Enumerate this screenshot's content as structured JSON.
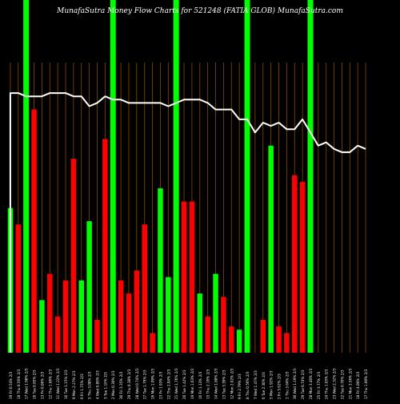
{
  "title": "MunafaSutra  Money Flow  Charts for 521248               (FATIA GLOB) MunafaSutra.com",
  "colors": {
    "background": "#000000",
    "up": "#00ff00",
    "down": "#ff0000",
    "grid": "#8a4a00",
    "highlight": "#00ff00",
    "line": "#ffffff",
    "text": "#ffffff"
  },
  "chart_data": {
    "type": "bar",
    "title": "MunafaSutra  Money Flow  Charts for 521248               (FATIA GLOB) MunafaSutra.com",
    "xlabel": "",
    "ylabel": "",
    "ylim": [
      0,
      100
    ],
    "grid": "vertical",
    "categories": [
      "19 Fri 0.54% 2/3",
      "18 Thu 0.56% 2/3",
      "17 Wed 1.98% 2/3",
      "16 Tue 0.85% 2/3",
      "13 Fri 0.06% 2/3",
      "12 Thu 1.06% 2/3",
      "11 Wed 1.22% 2/3",
      "10 Tue 1.15% 2/3",
      "9 Mon 2.27% 2/3",
      "6 Fri 1.75% 2/3",
      "5 Thu 3.08% 2/3",
      "4 Wed 0.89% 2/3",
      "3 Tue 1.16% 2/3",
      "2 Mon 0.30% 2/3",
      "30 Fri 3.35% 2/3",
      "29 Thu 0.38% 2/3",
      "28 Wed 0.74% 2/3",
      "27 Tue 1.79% 2/3",
      "26 Mon 1.09% 2/3",
      "23 Fri 1.93% 2/3",
      "22 Thu 2.04% 2/3",
      "21 Wed 1.76% 2/3",
      "20 Tue 1.42% 2/3",
      "19 Mon 1.63% 2/3",
      "16 Fri 1.13% 2/3",
      "15 Thu 2.16% 2/3",
      "14 Wed 1.88% 2/3",
      "13 Tue 3.39% 2/3",
      "12 Mon 2.02% 2/3",
      "9 Fri 2.79% 2/3",
      "8 Thu 0.56% 2/3",
      "7 Wed 1.47% 2/3",
      "6 Tue 2.30% 2/3",
      "5 Mon 1.92% 2/3",
      "2 Fri 3.62% 2/3",
      "1 Thu 3.64% 2/3",
      "30 Wed 1.19% 2/3",
      "29 Tue 0.74% 2/3",
      "28 Mon 3.40% 2/3",
      "25 Fri 3.77% 2/3",
      "24 Thu 1.05% 2/3",
      "23 Wed 2.32% 2/3",
      "22 Tue 0.70% 2/3",
      "21 Mon 3.56% 2/3",
      "18 Fri 4.00% 2/3",
      "17 Thu 1.00% 2/3"
    ],
    "series": [
      {
        "values": [
          44,
          39,
          0,
          74,
          16,
          24,
          11,
          22,
          59,
          22,
          40,
          10,
          65,
          30,
          22,
          18,
          25,
          39,
          6,
          50,
          23,
          0,
          46,
          46,
          18,
          11,
          24,
          17,
          8,
          7,
          48,
          0,
          10,
          63,
          8,
          6,
          54,
          52,
          0,
          0,
          0,
          0,
          0,
          0,
          0,
          0
        ],
        "directions": [
          "up",
          "down",
          "up",
          "down",
          "up",
          "down",
          "down",
          "down",
          "down",
          "up",
          "up",
          "down",
          "down",
          "up",
          "down",
          "down",
          "down",
          "down",
          "down",
          "up",
          "up",
          "up",
          "down",
          "down",
          "up",
          "down",
          "up",
          "down",
          "down",
          "up",
          "up",
          "up",
          "down",
          "up",
          "down",
          "down",
          "down",
          "down",
          "down",
          "down",
          "down",
          "down",
          "down",
          "down",
          "down",
          "down"
        ]
      }
    ],
    "line_values": [
      79,
      79,
      78,
      78,
      78,
      79,
      79,
      79,
      78,
      78,
      75,
      76,
      78,
      77,
      77,
      76,
      76,
      76,
      76,
      76,
      75,
      76,
      77,
      77,
      77,
      76,
      74,
      74,
      74,
      71,
      71,
      67,
      70,
      69,
      70,
      68,
      68,
      71,
      67,
      63,
      64,
      62,
      61,
      61,
      63,
      62
    ],
    "highlight_categories": [
      "17 Wed 1.98% 2/3",
      "2 Mon 0.30% 2/3",
      "21 Wed 1.76% 2/3",
      "28 Mon 3.40% 2/3",
      "8 Thu 0.56% 2/3"
    ]
  }
}
